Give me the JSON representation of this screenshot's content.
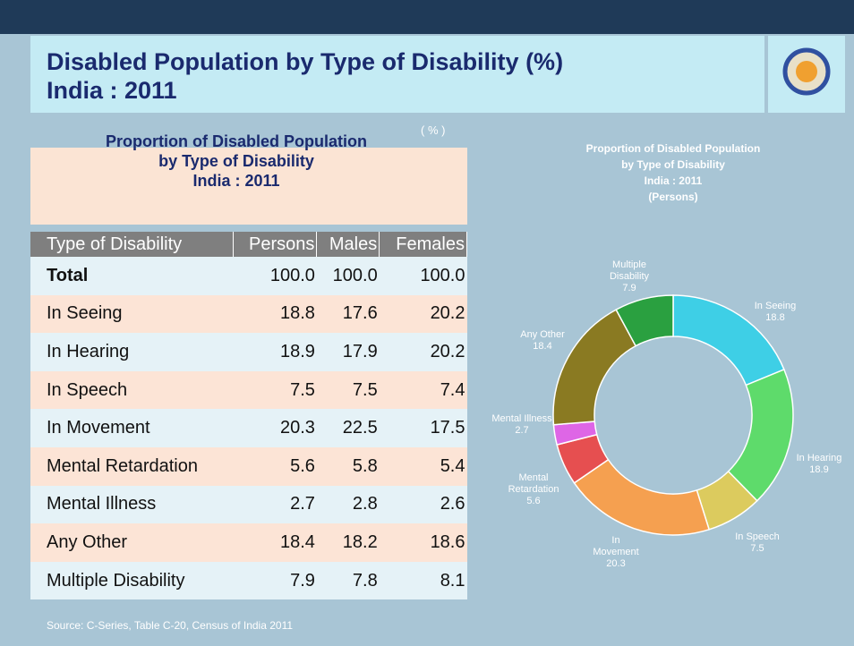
{
  "header": {
    "title": [
      "Disabled Population by Type of Disability (%)",
      "India : 2011"
    ]
  },
  "table": {
    "title": [
      "Proportion of Disabled Population",
      "by Type of Disability",
      "India : 2011"
    ],
    "unit": "( % )",
    "columns": [
      "Type of Disability",
      "Persons",
      "Males",
      "Females"
    ],
    "rows": [
      [
        "Total",
        "100.0",
        "100.0",
        "100.0"
      ],
      [
        "In Seeing",
        "18.8",
        "17.6",
        "20.2"
      ],
      [
        "In Hearing",
        "18.9",
        "17.9",
        "20.2"
      ],
      [
        "In Speech",
        "7.5",
        "7.5",
        "7.4"
      ],
      [
        "In Movement",
        "20.3",
        "22.5",
        "17.5"
      ],
      [
        "Mental Retardation",
        "5.6",
        "5.8",
        "5.4"
      ],
      [
        "Mental Illness",
        "2.7",
        "2.8",
        "2.6"
      ],
      [
        "Any Other",
        "18.4",
        "18.2",
        "18.6"
      ],
      [
        "Multiple Disability",
        "7.9",
        "7.8",
        "8.1"
      ]
    ]
  },
  "chart_data": {
    "type": "donut",
    "title": [
      "Proportion of Disabled Population",
      "by Type of Disability",
      "India : 2011",
      "(Persons)"
    ],
    "categories": [
      "In Seeing",
      "In Hearing",
      "In Speech",
      "In Movement",
      "Mental Retardation",
      "Mental Illness",
      "Any Other",
      "Multiple Disability"
    ],
    "values": [
      18.8,
      18.9,
      7.5,
      20.3,
      5.6,
      2.7,
      18.4,
      7.9
    ],
    "colors": [
      "#3ecfe6",
      "#5edb6b",
      "#dccb5e",
      "#f5a050",
      "#e64f50",
      "#de66e6",
      "#8a7a22",
      "#2aa040"
    ]
  },
  "source": "Source: C-Series, Table C-20, Census of India 2011"
}
